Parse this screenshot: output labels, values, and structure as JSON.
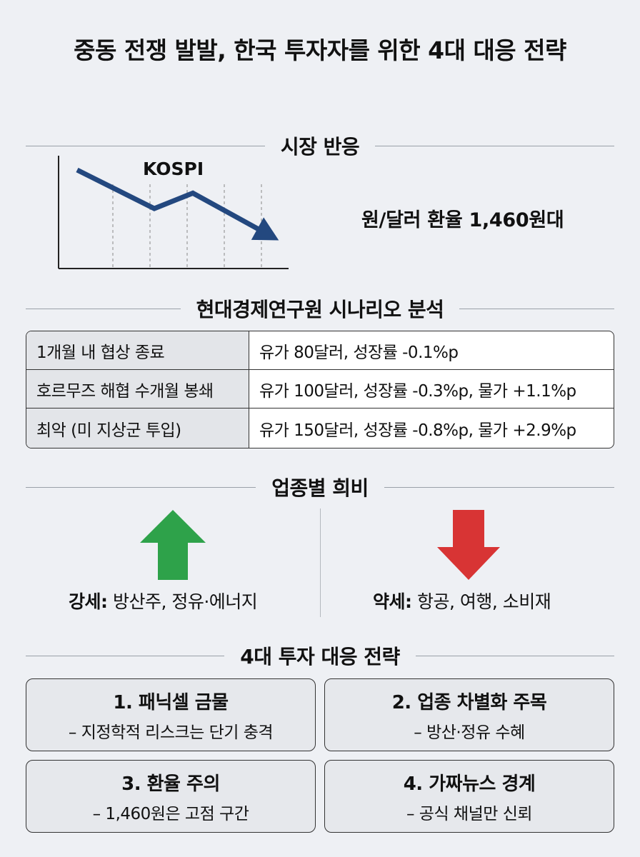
{
  "title": "중동 전쟁 발발, 한국 투자자를 위한 4대 대응 전략",
  "market": {
    "heading": "시장 반응",
    "chart_label": "KOSPI",
    "fx_text": "원/달러 환율 1,460원대"
  },
  "chart_data": {
    "type": "line",
    "title": "KOSPI",
    "x": [
      0,
      1,
      2,
      3,
      4,
      5
    ],
    "values": [
      100,
      90,
      80,
      88,
      77,
      66
    ],
    "xlabel": "",
    "ylabel": "",
    "grid": "vertical dashed",
    "trend": "down"
  },
  "scenario": {
    "heading": "현대경제연구원 시나리오 분석",
    "rows": [
      {
        "case": "1개월 내 협상 종료",
        "result": "유가 80달러, 성장률 -0.1%p"
      },
      {
        "case": "호르무즈 해협 수개월 봉쇄",
        "result": "유가 100달러, 성장률 -0.3%p, 물가 +1.1%p"
      },
      {
        "case": "최악 (미 지상군 투입)",
        "result": "유가 150달러, 성장률 -0.8%p, 물가 +2.9%p"
      }
    ]
  },
  "sectors": {
    "heading": "업종별 희비",
    "strong_label": "강세:",
    "strong_items": "방산주, 정유·에너지",
    "weak_label": "약세:",
    "weak_items": "항공, 여행, 소비재",
    "colors": {
      "up": "#2ea24a",
      "down": "#d83434"
    }
  },
  "strategy": {
    "heading": "4대 투자 대응 전략",
    "cards": [
      {
        "title": "1. 패닉셀 금물",
        "desc": "– 지정학적 리스크는 단기 충격"
      },
      {
        "title": "2. 업종 차별화 주목",
        "desc": "– 방산·정유 수혜"
      },
      {
        "title": "3. 환율 주의",
        "desc": "– 1,460원은 고점 구간"
      },
      {
        "title": "4. 가짜뉴스 경계",
        "desc": "– 공식 채널만 신뢰"
      }
    ]
  },
  "accent_color": "#23487f"
}
